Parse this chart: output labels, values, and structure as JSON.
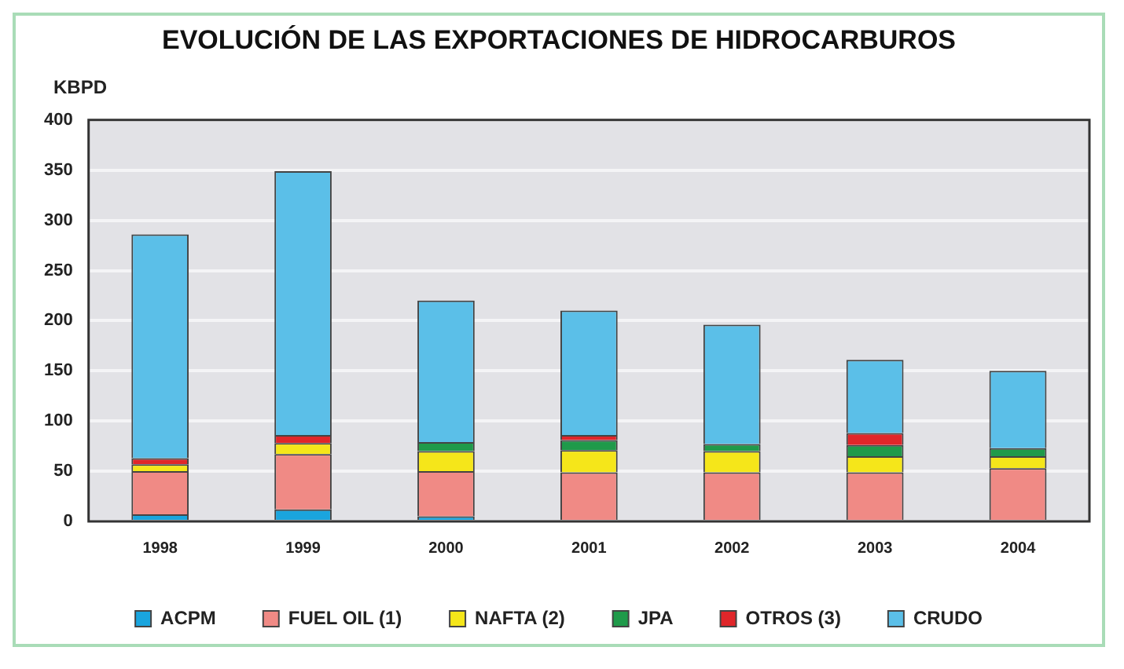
{
  "chart_data": {
    "type": "bar",
    "title": "EVOLUCIÓN DE LAS EXPORTACIONES DE HIDROCARBUROS",
    "ylabel": "KBPD",
    "stacked": true,
    "categories": [
      "1998",
      "1999",
      "2000",
      "2001",
      "2002",
      "2003",
      "2004"
    ],
    "series": [
      {
        "name": "ACPM",
        "color": "#1aa5de",
        "values": [
          7,
          12,
          5,
          0,
          0,
          0,
          0
        ]
      },
      {
        "name": "FUEL OIL (1)",
        "color": "#f08a85",
        "values": [
          43,
          55,
          45,
          49,
          49,
          49,
          53
        ]
      },
      {
        "name": "NAFTA (2)",
        "color": "#f5e61a",
        "values": [
          7,
          11,
          20,
          22,
          21,
          16,
          12
        ]
      },
      {
        "name": "JPA",
        "color": "#1f9a4a",
        "values": [
          0,
          0,
          9,
          10,
          7,
          11,
          8
        ]
      },
      {
        "name": "OTROS (3)",
        "color": "#e0262a",
        "values": [
          6,
          8,
          0,
          5,
          0,
          12,
          0
        ]
      },
      {
        "name": "CRUDO",
        "color": "#5bbfe8",
        "values": [
          223,
          263,
          141,
          124,
          119,
          73,
          77
        ]
      }
    ],
    "ylim": [
      0,
      400
    ],
    "yticks": [
      0,
      50,
      100,
      150,
      200,
      250,
      300,
      350,
      400
    ],
    "grid": "y",
    "legend": "bottom"
  }
}
